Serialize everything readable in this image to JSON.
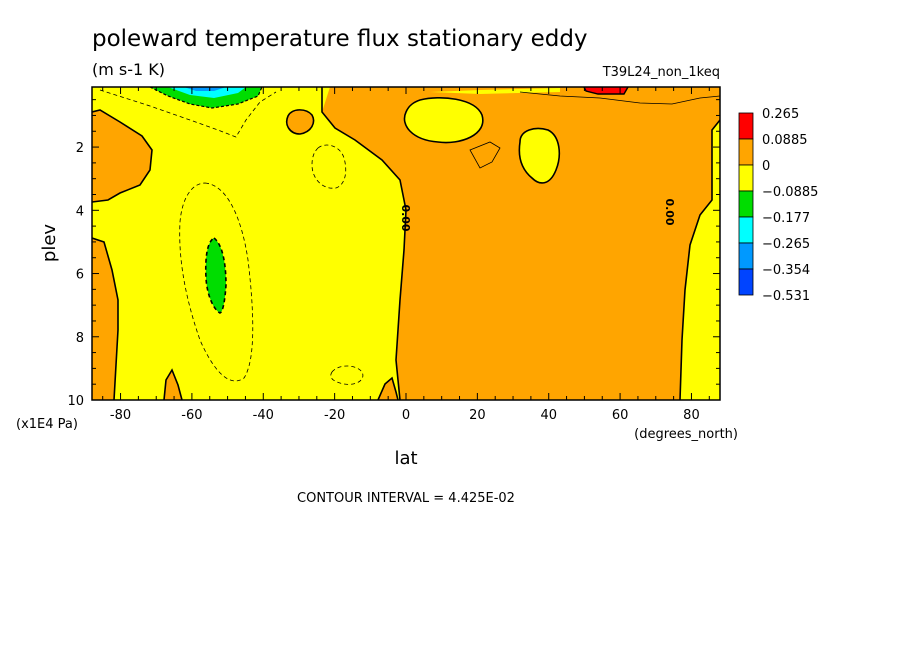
{
  "chart_data": {
    "type": "heatmap",
    "title": "poleward temperature flux stationary eddy",
    "units": "(m s-1 K)",
    "run_label": "T39L24_non_1keq",
    "xlabel": "lat",
    "x_units": "(degrees_north)",
    "ylabel": "plev",
    "y_units": "(x1E4 Pa)",
    "xlim": [
      -88,
      88
    ],
    "ylim": [
      10,
      0.1
    ],
    "y_reversed": true,
    "x_ticks": [
      "-80",
      "-60",
      "-40",
      "-20",
      "0",
      "20",
      "40",
      "60",
      "80"
    ],
    "y_ticks": [
      "2",
      "4",
      "6",
      "8",
      "10"
    ],
    "contour_interval_text": "CONTOUR INTERVAL = 4.425E-02",
    "contour_label": "0.00",
    "grid": false,
    "legend_position": "right",
    "colorbar": {
      "labels": [
        "0.265",
        "0.0885",
        "0",
        "−0.0885",
        "−0.177",
        "−0.265",
        "−0.354",
        "−0.531"
      ],
      "colors": [
        "#ff0000",
        "#ffa500",
        "#ffff00",
        "#00dd00",
        "#00ffff",
        "#0099ff",
        "#0044ff"
      ]
    },
    "colors": {
      "negative_weak": "#ffff00",
      "positive_weak": "#ffa500",
      "positive_strong": "#ff0000",
      "negative_mid": "#00dd00",
      "negative_strong": "#00ffff"
    },
    "regions": [
      {
        "name": "southern-hemisphere-negative",
        "value_range": [
          -0.0885,
          0
        ],
        "lat_range": [
          -88,
          0
        ],
        "plev_range": [
          0.1,
          10
        ]
      },
      {
        "name": "northern-hemisphere-positive",
        "value_range": [
          0,
          0.0885
        ],
        "lat_range": [
          0,
          88
        ],
        "plev_range": [
          0.1,
          10
        ]
      },
      {
        "name": "southern-mid-latitude-minimum",
        "value_range": [
          -0.177,
          -0.0885
        ],
        "lat_center": -55,
        "plev_range": [
          4.8,
          7.3
        ]
      },
      {
        "name": "antarctic-upper-minimum",
        "value_range": [
          -0.531,
          -0.0885
        ],
        "lat_range": [
          -80,
          -50
        ],
        "plev_range": [
          0.1,
          0.7
        ]
      },
      {
        "name": "arctic-upper-maximum",
        "value_range": [
          0.0885,
          0.265
        ],
        "lat_range": [
          50,
          65
        ],
        "plev_range": [
          0.1,
          0.3
        ]
      }
    ]
  }
}
